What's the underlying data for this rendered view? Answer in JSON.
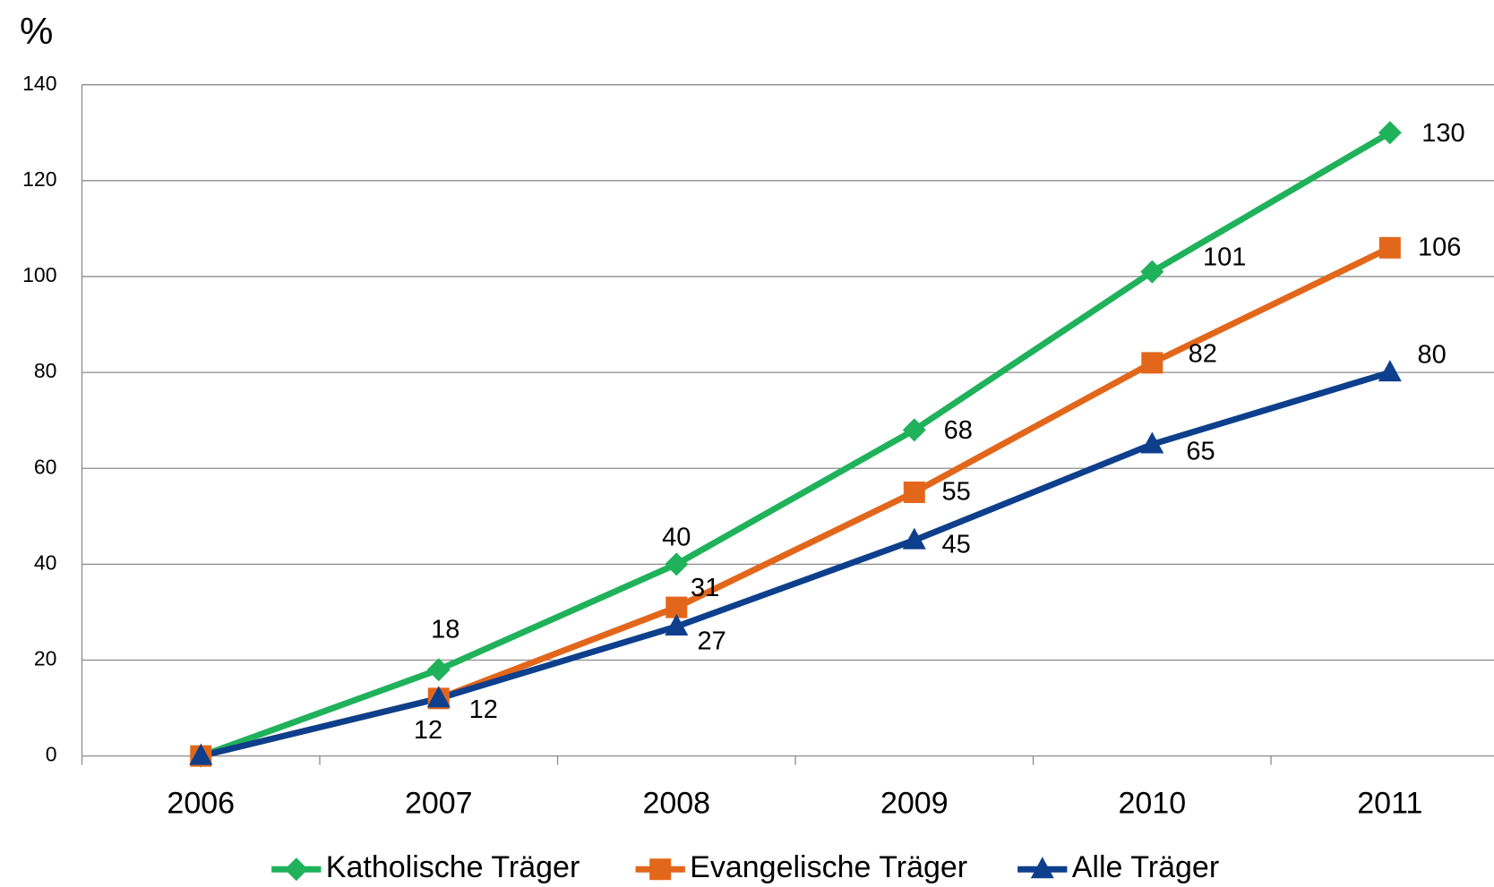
{
  "chart_data": {
    "type": "line",
    "y_label": "%",
    "categories": [
      "2006",
      "2007",
      "2008",
      "2009",
      "2010",
      "2011"
    ],
    "series": [
      {
        "name": "Katholische Träger",
        "color": "#1fb25a",
        "marker": "diamond",
        "values": [
          0,
          18,
          40,
          68,
          101,
          130
        ],
        "value_labels": [
          null,
          "18",
          "40",
          "68",
          "101",
          "130"
        ]
      },
      {
        "name": "Evangelische Träger",
        "color": "#e2671b",
        "marker": "square",
        "values": [
          0,
          12,
          31,
          55,
          82,
          106
        ],
        "value_labels": [
          null,
          "12",
          "31",
          "55",
          "82",
          "106"
        ]
      },
      {
        "name": "Alle Träger",
        "color": "#0d3f8c",
        "marker": "triangle",
        "values": [
          0,
          12,
          27,
          45,
          65,
          80
        ],
        "value_labels": [
          null,
          "12",
          "27",
          "45",
          "65",
          "80"
        ]
      }
    ],
    "ylim": [
      0,
      140
    ],
    "yticks": [
      0,
      20,
      40,
      60,
      80,
      100,
      120,
      140
    ],
    "grid": true,
    "legend": "bottom"
  }
}
